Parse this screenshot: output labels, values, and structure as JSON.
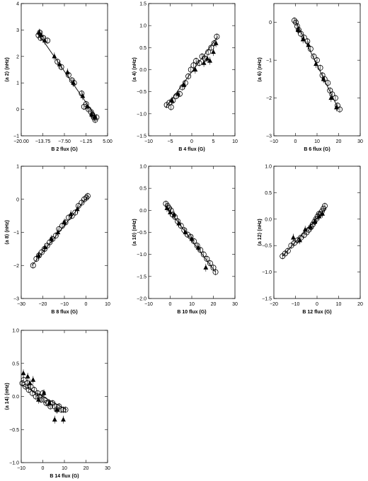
{
  "chart_data": [
    {
      "id": "a2",
      "type": "scatter",
      "xlabel": "B 2 flux (G)",
      "ylabel": "⟨a 2⟩ (nHz)",
      "xlim": [
        -20,
        5
      ],
      "ylim": [
        -1,
        4
      ],
      "xticks": [
        -20.0,
        -13.75,
        -7.5,
        -1.25,
        5.0
      ],
      "xtick_labels": [
        "−20.00",
        "−13.75",
        "−7.50",
        "−1.25",
        "5.00"
      ],
      "yticks": [
        -1,
        0,
        1,
        2,
        3,
        4
      ],
      "ytick_labels": [
        "−1",
        "0",
        "1",
        "2",
        "3",
        "4"
      ],
      "fit": {
        "x": [
          -15,
          2
        ],
        "y": [
          2.85,
          -0.35
        ]
      },
      "series": [
        {
          "marker": "circle",
          "x": [
            -15,
            -14.6,
            -14.4,
            -13.6,
            -12.4,
            -9.5,
            -8.4,
            -6.3,
            -5.3,
            -4.7,
            -2.5,
            -1.8,
            -1.2,
            -0.5,
            0.2,
            0.6,
            1,
            1.4,
            1.8
          ],
          "y": [
            2.8,
            2.9,
            2.7,
            2.7,
            2.6,
            1.8,
            1.6,
            1.3,
            1.1,
            1.0,
            0.6,
            0.1,
            0.2,
            0,
            -0.1,
            -0.2,
            -0.3,
            -0.4,
            -0.3
          ]
        },
        {
          "marker": "triangle",
          "x": [
            -14.8,
            -14.2,
            -13.2,
            -10.4,
            -8.9,
            -6.6,
            -4.9,
            -2.2,
            -0.9,
            0.4,
            1.2
          ],
          "y": [
            2.9,
            2.8,
            2.6,
            2.0,
            1.7,
            1.4,
            1.0,
            0.5,
            0.1,
            -0.2,
            -0.3
          ]
        }
      ]
    },
    {
      "id": "a4",
      "type": "scatter",
      "xlabel": "B 4 flux (G)",
      "ylabel": "⟨a 4⟩ (nHz)",
      "xlim": [
        -10,
        10
      ],
      "ylim": [
        -1.5,
        1.5
      ],
      "xticks": [
        -10,
        -5,
        0,
        5,
        10
      ],
      "xtick_labels": [
        "−10",
        "−5",
        "0",
        "5",
        "10"
      ],
      "yticks": [
        -1.5,
        -1.0,
        -0.5,
        0.0,
        0.5,
        1.0,
        1.5
      ],
      "ytick_labels": [
        "−1.5",
        "−1.0",
        "−0.5",
        "0.0",
        "0.5",
        "1.0",
        "1.5"
      ],
      "fit": {
        "x": [
          -6,
          6
        ],
        "y": [
          -0.85,
          0.75
        ]
      },
      "series": [
        {
          "marker": "circle",
          "x": [
            -5.8,
            -5.2,
            -4.8,
            -4.4,
            -3.6,
            -2.8,
            -2.2,
            -1.5,
            -0.8,
            -0.2,
            0.4,
            1.0,
            1.7,
            2.4,
            3.1,
            3.8,
            4.5,
            5.2,
            5.8
          ],
          "y": [
            -0.8,
            -0.75,
            -0.85,
            -0.7,
            -0.6,
            -0.55,
            -0.4,
            -0.3,
            -0.15,
            0.0,
            0.1,
            0.2,
            0.15,
            0.3,
            0.25,
            0.4,
            0.5,
            0.6,
            0.75
          ]
        },
        {
          "marker": "triangle",
          "x": [
            -4.6,
            -3.2,
            -1.8,
            0.8,
            2.8,
            3.6,
            4.2,
            5.0,
            5.6
          ],
          "y": [
            -0.7,
            -0.55,
            -0.35,
            0.0,
            0.15,
            0.25,
            0.2,
            0.4,
            0.6
          ]
        }
      ]
    },
    {
      "id": "a6",
      "type": "scatter",
      "xlabel": "B 6 flux (G)",
      "ylabel": "⟨a 6⟩ (nHz)",
      "xlim": [
        -10,
        30
      ],
      "ylim": [
        -3,
        0.5
      ],
      "xticks": [
        -10,
        0,
        10,
        20,
        30
      ],
      "xtick_labels": [
        "−10",
        "0",
        "10",
        "20",
        "30"
      ],
      "yticks": [
        -3,
        -2,
        -1,
        0
      ],
      "ytick_labels": [
        "−3",
        "−2",
        "−1",
        "0"
      ],
      "fit": {
        "x": [
          0,
          20
        ],
        "y": [
          0.05,
          -2.3
        ]
      },
      "series": [
        {
          "marker": "circle",
          "x": [
            -0.5,
            0.2,
            0.8,
            1.5,
            2.5,
            4,
            5.5,
            7,
            8.5,
            10,
            11.5,
            12.5,
            13.5,
            15,
            16,
            17,
            18.5,
            19.5,
            20.5
          ],
          "y": [
            0.05,
            0,
            -0.1,
            -0.2,
            -0.3,
            -0.4,
            -0.5,
            -0.7,
            -0.9,
            -1.0,
            -1.2,
            -1.4,
            -1.5,
            -1.6,
            -1.8,
            -1.9,
            -2.0,
            -2.2,
            -2.3
          ]
        },
        {
          "marker": "triangle",
          "x": [
            1.2,
            3.5,
            6,
            9.5,
            13,
            16.5,
            19
          ],
          "y": [
            -0.2,
            -0.45,
            -0.6,
            -1.1,
            -1.5,
            -2.0,
            -2.25
          ]
        }
      ]
    },
    {
      "id": "a8",
      "type": "scatter",
      "xlabel": "B 8 flux (G)",
      "ylabel": "⟨a 8⟩ (nHz)",
      "xlim": [
        -30,
        10
      ],
      "ylim": [
        -3,
        1
      ],
      "xticks": [
        -30,
        -20,
        -10,
        0,
        10
      ],
      "xtick_labels": [
        "−30",
        "−20",
        "−10",
        "0",
        "10"
      ],
      "yticks": [
        -3,
        -2,
        -1,
        0,
        1
      ],
      "ytick_labels": [
        "−3",
        "−2",
        "−1",
        "0",
        "1"
      ],
      "fit": {
        "x": [
          -25,
          1
        ],
        "y": [
          -2.0,
          0.1
        ]
      },
      "series": [
        {
          "marker": "circle",
          "x": [
            -24.5,
            -23,
            -21.8,
            -20.5,
            -19.2,
            -18,
            -16.8,
            -15.5,
            -14,
            -12.5,
            -11,
            -9.5,
            -8,
            -6.5,
            -5,
            -3.5,
            -2,
            -0.8,
            0.2,
            0.8
          ],
          "y": [
            -2.0,
            -1.8,
            -1.7,
            -1.6,
            -1.5,
            -1.4,
            -1.3,
            -1.2,
            -1.1,
            -0.9,
            -0.8,
            -0.7,
            -0.55,
            -0.5,
            -0.4,
            -0.2,
            -0.1,
            0,
            0.05,
            0.1
          ]
        },
        {
          "marker": "triangle",
          "x": [
            -22,
            -19,
            -16,
            -13,
            -10,
            -7,
            -4
          ],
          "y": [
            -1.7,
            -1.45,
            -1.2,
            -1.0,
            -0.7,
            -0.45,
            -0.3
          ]
        }
      ]
    },
    {
      "id": "a10",
      "type": "scatter",
      "xlabel": "B 10 flux (G)",
      "ylabel": "⟨a 10⟩ (nHz)",
      "xlim": [
        -10,
        30
      ],
      "ylim": [
        -2,
        1
      ],
      "xticks": [
        -10,
        0,
        10,
        20,
        30
      ],
      "xtick_labels": [
        "−10",
        "0",
        "10",
        "20",
        "30"
      ],
      "yticks": [
        -2.0,
        -1.5,
        -1.0,
        -0.5,
        0.0,
        0.5,
        1.0
      ],
      "ytick_labels": [
        "−2.0",
        "−1.5",
        "−1.0",
        "−0.5",
        "0.0",
        "0.5",
        "1.0"
      ],
      "fit": {
        "x": [
          -2,
          21
        ],
        "y": [
          0.1,
          -1.4
        ]
      },
      "series": [
        {
          "marker": "circle",
          "x": [
            -2,
            -1.2,
            -0.5,
            0.3,
            1.2,
            2.2,
            3.5,
            5,
            6.5,
            8,
            9.5,
            11,
            12.5,
            14,
            15.5,
            17,
            18.5,
            20,
            21
          ],
          "y": [
            0.15,
            0.1,
            0.05,
            0,
            -0.1,
            -0.15,
            -0.25,
            -0.35,
            -0.45,
            -0.55,
            -0.6,
            -0.7,
            -0.8,
            -0.9,
            -1.0,
            -1.1,
            -1.2,
            -1.3,
            -1.4
          ]
        },
        {
          "marker": "triangle",
          "x": [
            -1.5,
            0,
            1.8,
            4,
            7,
            10,
            13,
            16.5
          ],
          "y": [
            0.05,
            -0.05,
            -0.1,
            -0.3,
            -0.5,
            -0.65,
            -0.85,
            -1.3
          ]
        }
      ]
    },
    {
      "id": "a12",
      "type": "scatter",
      "xlabel": "B 12 flux (G)",
      "ylabel": "⟨a 12⟩ (nHz)",
      "xlim": [
        -20,
        20
      ],
      "ylim": [
        -1.5,
        1
      ],
      "xticks": [
        -20,
        -10,
        0,
        10,
        20
      ],
      "xtick_labels": [
        "−20",
        "−10",
        "0",
        "10",
        "20"
      ],
      "yticks": [
        -1.5,
        -1.0,
        -0.5,
        0.0,
        0.5,
        1.0
      ],
      "ytick_labels": [
        "−1.5",
        "−1.0",
        "−0.5",
        "0.0",
        "0.5",
        "1.0"
      ],
      "fit": {
        "x": [
          -16,
          4
        ],
        "y": [
          -0.7,
          0.2
        ]
      },
      "series": [
        {
          "marker": "circle",
          "x": [
            -16,
            -14.8,
            -13.5,
            -12,
            -10.5,
            -9,
            -7.5,
            -6,
            -4.8,
            -3.8,
            -2.8,
            -2,
            -1.2,
            -0.5,
            0.2,
            0.9,
            1.6,
            2.3,
            3,
            3.6
          ],
          "y": [
            -0.7,
            -0.65,
            -0.6,
            -0.5,
            -0.45,
            -0.4,
            -0.35,
            -0.3,
            -0.25,
            -0.2,
            -0.15,
            -0.1,
            -0.05,
            0,
            0.05,
            0.1,
            0.1,
            0.15,
            0.2,
            0.25
          ]
        },
        {
          "marker": "triangle",
          "x": [
            -11,
            -8,
            -5.5,
            -3,
            -1,
            1,
            2.5
          ],
          "y": [
            -0.35,
            -0.4,
            -0.2,
            -0.15,
            -0.05,
            0.05,
            0.1
          ]
        }
      ]
    },
    {
      "id": "a14",
      "type": "scatter",
      "xlabel": "B 14 flux (G)",
      "ylabel": "⟨a 14⟩ (nHz)",
      "xlim": [
        -10,
        30
      ],
      "ylim": [
        -1,
        1
      ],
      "xticks": [
        -10,
        0,
        10,
        20,
        30
      ],
      "xtick_labels": [
        "−10",
        "0",
        "10",
        "20",
        "30"
      ],
      "yticks": [
        -1.0,
        -0.5,
        0.0,
        0.5,
        1.0
      ],
      "ytick_labels": [
        "−1.0",
        "−0.5",
        "0.0",
        "0.5",
        "1.0"
      ],
      "fit": {
        "x": [
          -10,
          11
        ],
        "y": [
          0.18,
          -0.2
        ]
      },
      "series": [
        {
          "marker": "circle",
          "x": [
            -9.5,
            -8.8,
            -8,
            -7.2,
            -6.5,
            -5.6,
            -4.8,
            -4,
            -3.2,
            -2.4,
            -1.6,
            -0.8,
            0,
            0.8,
            1.6,
            2.5,
            3.5,
            4.5,
            5.5,
            6.5,
            7.5,
            8.5,
            9.5,
            10.5
          ],
          "y": [
            0.2,
            0.25,
            0.15,
            0.2,
            0.1,
            0.15,
            0.05,
            0.1,
            0.0,
            0.05,
            0.0,
            -0.05,
            0.05,
            -0.05,
            -0.1,
            -0.1,
            -0.15,
            -0.1,
            -0.15,
            -0.2,
            -0.15,
            -0.2,
            -0.2,
            -0.2
          ]
        },
        {
          "marker": "triangle",
          "x": [
            -9,
            -7,
            -6,
            -4.5,
            -2,
            0.5,
            3,
            5.5,
            6.5,
            9.5
          ],
          "y": [
            0.35,
            0.3,
            0.2,
            0.25,
            -0.05,
            0.05,
            -0.1,
            -0.35,
            -0.2,
            -0.35
          ]
        }
      ]
    }
  ]
}
